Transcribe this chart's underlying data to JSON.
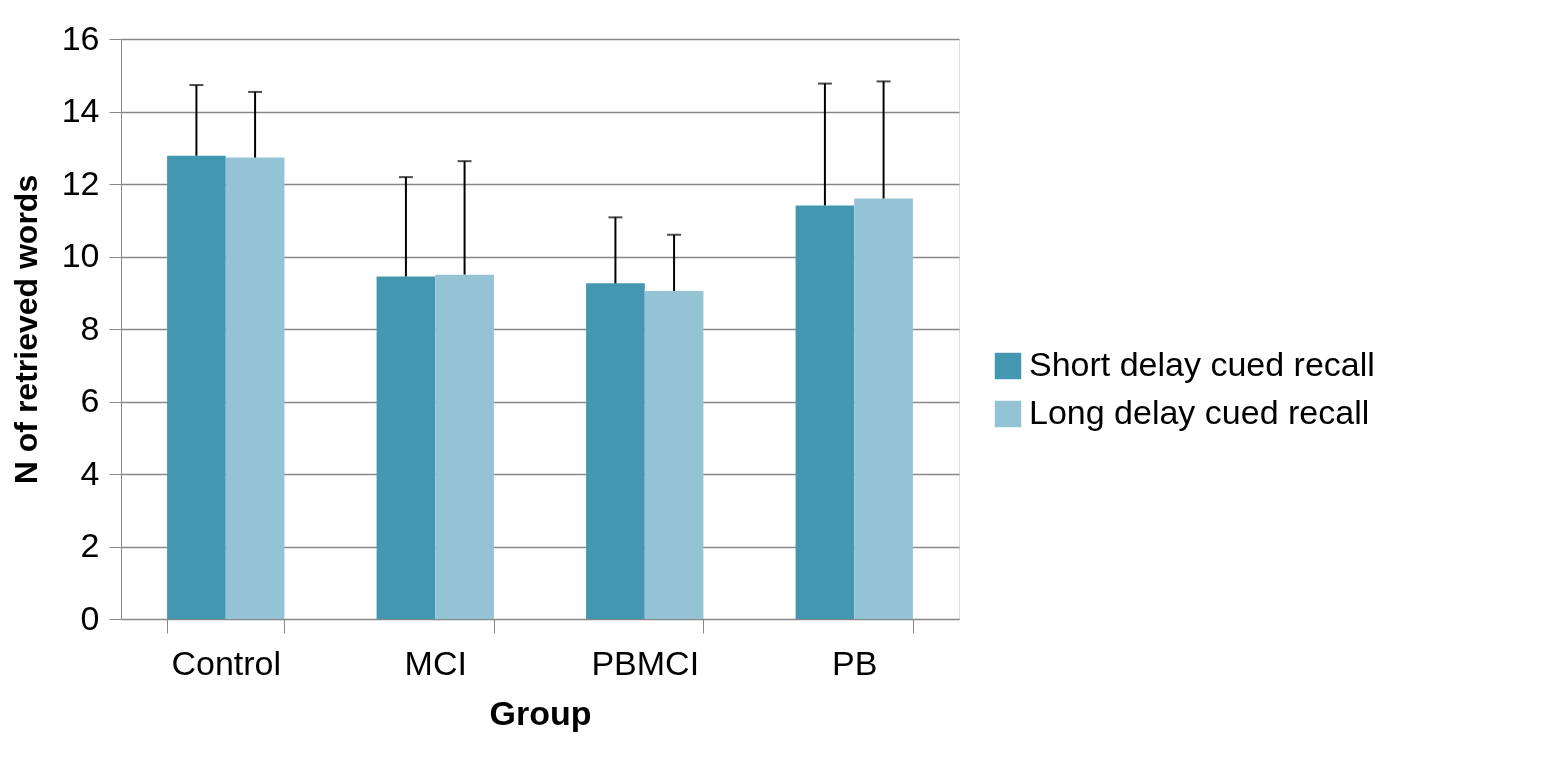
{
  "chart_data": {
    "type": "bar",
    "xlabel": "Group",
    "ylabel": "N of retrieved words",
    "categories": [
      "Control",
      "MCI",
      "PBMCI",
      "PB"
    ],
    "series": [
      {
        "name": "Short delay cued recall",
        "color": "#4397b0",
        "values": [
          12.78,
          9.45,
          9.26,
          11.41
        ],
        "errors": [
          [
            12.78,
            14.73
          ],
          [
            9.45,
            12.19
          ],
          [
            9.26,
            11.08
          ],
          [
            11.41,
            14.77
          ]
        ]
      },
      {
        "name": "Long delay cued recall",
        "color": "#93c3d4",
        "values": [
          12.73,
          9.5,
          9.05,
          11.6
        ],
        "errors": [
          [
            12.73,
            14.54
          ],
          [
            9.5,
            12.63
          ],
          [
            9.05,
            10.6
          ],
          [
            11.6,
            14.83
          ]
        ]
      }
    ],
    "ylim": [
      0,
      16
    ],
    "yticks": [
      0,
      2,
      4,
      6,
      8,
      10,
      12,
      14,
      16
    ],
    "grid": "y",
    "legend": "right"
  }
}
